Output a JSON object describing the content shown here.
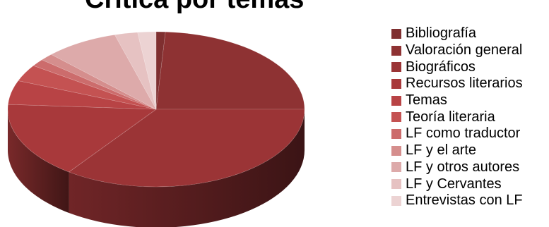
{
  "chart_data": {
    "type": "pie",
    "title": "Crítica por temas",
    "legend_position": "right",
    "slices": [
      {
        "label": "Bibliografía",
        "value": 1.0,
        "color": "#7f2f30"
      },
      {
        "label": "Valoración general",
        "value": 24.0,
        "color": "#8e3233"
      },
      {
        "label": "Biográficos",
        "value": 35.0,
        "color": "#9b3436"
      },
      {
        "label": "Recursos literarios",
        "value": 16.0,
        "color": "#a8393b"
      },
      {
        "label": "Temas",
        "value": 5.0,
        "color": "#b84345"
      },
      {
        "label": "Teoría literaria",
        "value": 3.5,
        "color": "#c45252"
      },
      {
        "label": "LF como traductor",
        "value": 1.5,
        "color": "#cc6c6c"
      },
      {
        "label": "LF y el arte",
        "value": 1.5,
        "color": "#d58e8d"
      },
      {
        "label": "LF y otros autores",
        "value": 8.0,
        "color": "#ddaaaa"
      },
      {
        "label": "LF y Cervantes",
        "value": 2.5,
        "color": "#e6c2c2"
      },
      {
        "label": "Entrevistas con LF",
        "value": 2.0,
        "color": "#ecd3d3"
      }
    ]
  }
}
